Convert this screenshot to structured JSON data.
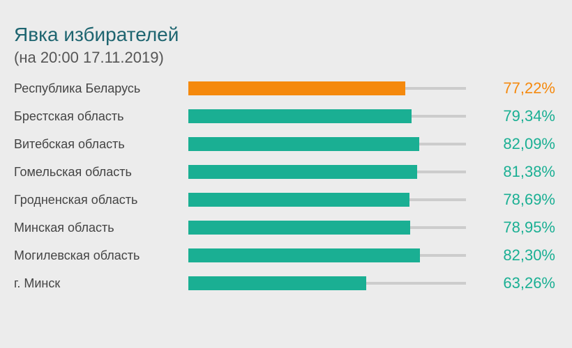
{
  "chart": {
    "title": "Явка избирателей",
    "subtitle": "(на 20:00 17.11.2019)"
  },
  "colors": {
    "highlight": "#f5890d",
    "bar": "#1aaf93",
    "track": "#cccccc",
    "title": "#1e6570"
  },
  "chart_data": {
    "type": "bar",
    "orientation": "horizontal",
    "title": "Явка избирателей",
    "subtitle": "(на 20:00 17.11.2019)",
    "categories": [
      "Республика Беларусь",
      "Брестская область",
      "Витебская область",
      "Гомельская область",
      "Гродненская область",
      "Минская область",
      "Могилевская область",
      "г. Минск"
    ],
    "values": [
      77.22,
      79.34,
      82.09,
      81.38,
      78.69,
      78.95,
      82.3,
      63.26
    ],
    "value_labels": [
      "77,22%",
      "79,34%",
      "82,09%",
      "81,38%",
      "78,69%",
      "78,95%",
      "82,30%",
      "63,26%"
    ],
    "highlight_index": 0,
    "xlim": [
      0,
      100
    ],
    "unit": "%",
    "grid": false,
    "legend": "none"
  }
}
